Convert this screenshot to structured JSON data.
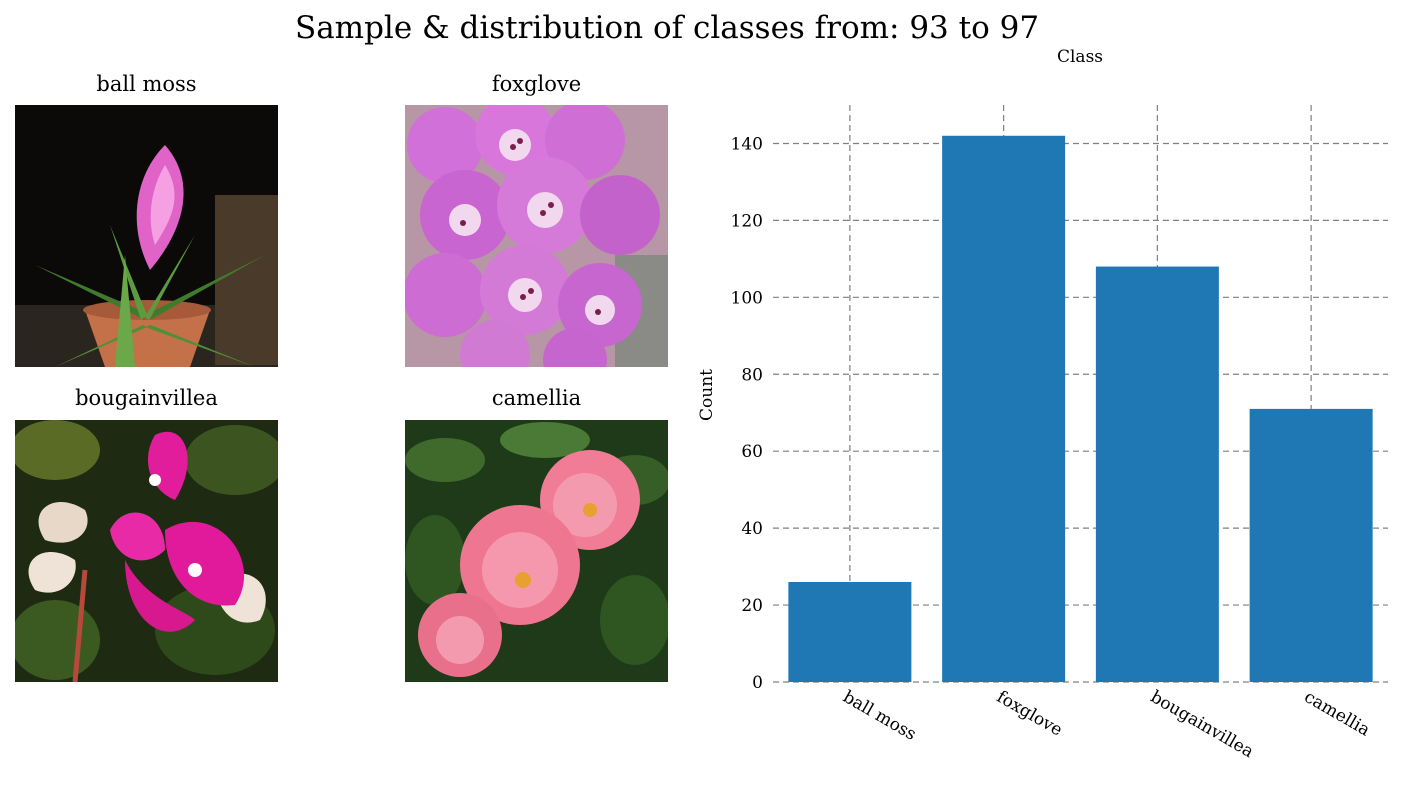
{
  "figure": {
    "suptitle": "Sample & distribution of classes from: 93 to 97"
  },
  "samples": [
    {
      "label": "ball moss",
      "icon": "pink-tillandsia-plant-photo"
    },
    {
      "label": "foxglove",
      "icon": "purple-foxglove-flower-photo"
    },
    {
      "label": "bougainvillea",
      "icon": "magenta-bougainvillea-photo"
    },
    {
      "label": "camellia",
      "icon": "pink-camellia-photo"
    }
  ],
  "colors": {
    "bar": "#1f77b4",
    "grid": "#808080"
  },
  "chart_data": {
    "type": "bar",
    "title": "Class",
    "xlabel": "",
    "ylabel": "Count",
    "categories": [
      "ball moss",
      "foxglove",
      "bougainvillea",
      "camellia"
    ],
    "values": [
      26,
      142,
      108,
      71
    ],
    "ylim": [
      0,
      150
    ],
    "yticks": [
      0,
      20,
      40,
      60,
      80,
      100,
      120,
      140
    ],
    "grid": true,
    "legend": "none"
  }
}
